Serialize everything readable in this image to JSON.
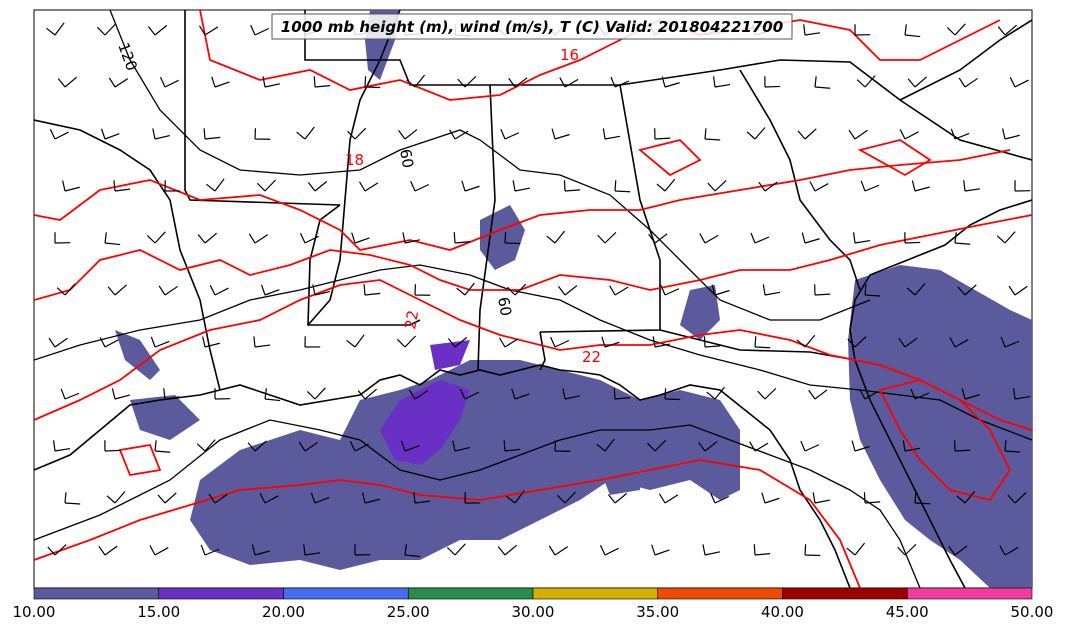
{
  "title": "1000 mb height (m), wind (m/s), T (C) Valid: 201804221700",
  "colorbar": {
    "ticks": [
      "10.00",
      "15.00",
      "20.00",
      "25.00",
      "30.00",
      "35.00",
      "40.00",
      "45.00",
      "50.00"
    ],
    "colors": [
      "#5a5a9c",
      "#6a2fc4",
      "#4a6cf0",
      "#2a8c4a",
      "#d4b000",
      "#f04a00",
      "#9c0000",
      "#f03c9c"
    ]
  },
  "height_contour_labels": [
    "120",
    "60",
    "60"
  ],
  "temperature_contour_labels": [
    "16",
    "18",
    "22",
    "22"
  ],
  "colors": {
    "wind_shade": "#5a5a9c",
    "wind_shade_strong": "#6a2fc4",
    "temperature_contour": "#ff0000",
    "height_contour": "#000000",
    "boundaries": "#000000"
  }
}
